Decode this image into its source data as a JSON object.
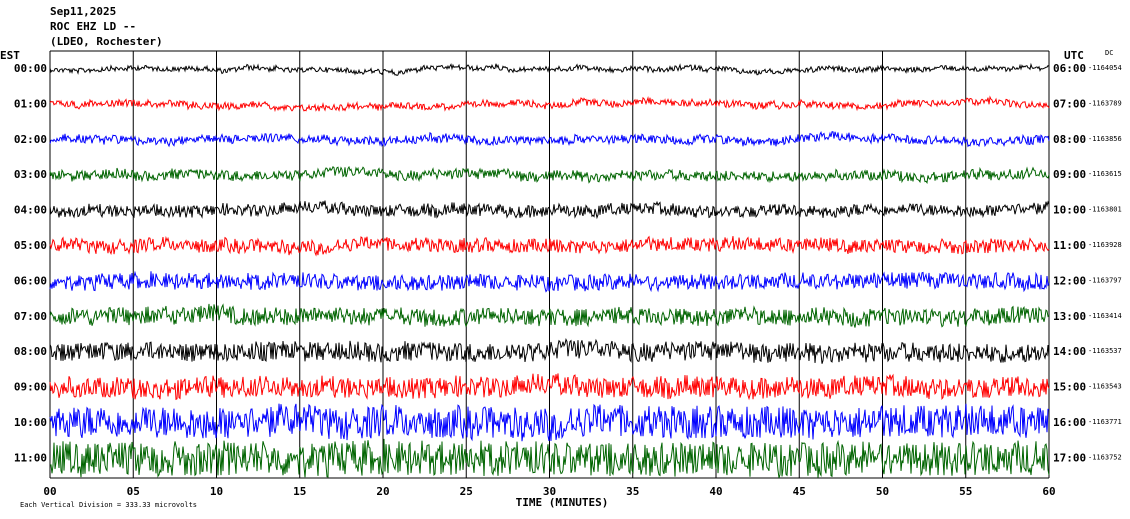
{
  "header": {
    "date": "Sep11,2025",
    "station": "ROC EHZ LD --",
    "network": "(LDEO, Rochester)"
  },
  "left_axis": {
    "label": "EST",
    "hours": [
      "00:00",
      "01:00",
      "02:00",
      "03:00",
      "04:00",
      "05:00",
      "06:00",
      "07:00",
      "08:00",
      "09:00",
      "10:00",
      "11:00"
    ]
  },
  "right_axis": {
    "label": "UTC",
    "dc_label": "DC",
    "hours": [
      "06:00",
      "07:00",
      "08:00",
      "09:00",
      "10:00",
      "11:00",
      "12:00",
      "13:00",
      "14:00",
      "15:00",
      "16:00",
      "17:00"
    ],
    "dc": [
      "-1164054",
      "-1163789",
      "-1163856",
      "-1163615",
      "-1163801",
      "-1163928",
      "-1163797",
      "-1163414",
      "-1163537",
      "-1163543",
      "-1163771",
      "-1163752"
    ]
  },
  "trace_colors": [
    "#000000",
    "#ff0000",
    "#0000ff",
    "#006400"
  ],
  "x_axis": {
    "label": "TIME (MINUTES)",
    "ticks": [
      "00",
      "05",
      "10",
      "15",
      "20",
      "25",
      "30",
      "35",
      "40",
      "45",
      "50",
      "55",
      "60"
    ]
  },
  "footer": {
    "scale": "Each Vertical Division =  333.33 microvolts"
  }
}
